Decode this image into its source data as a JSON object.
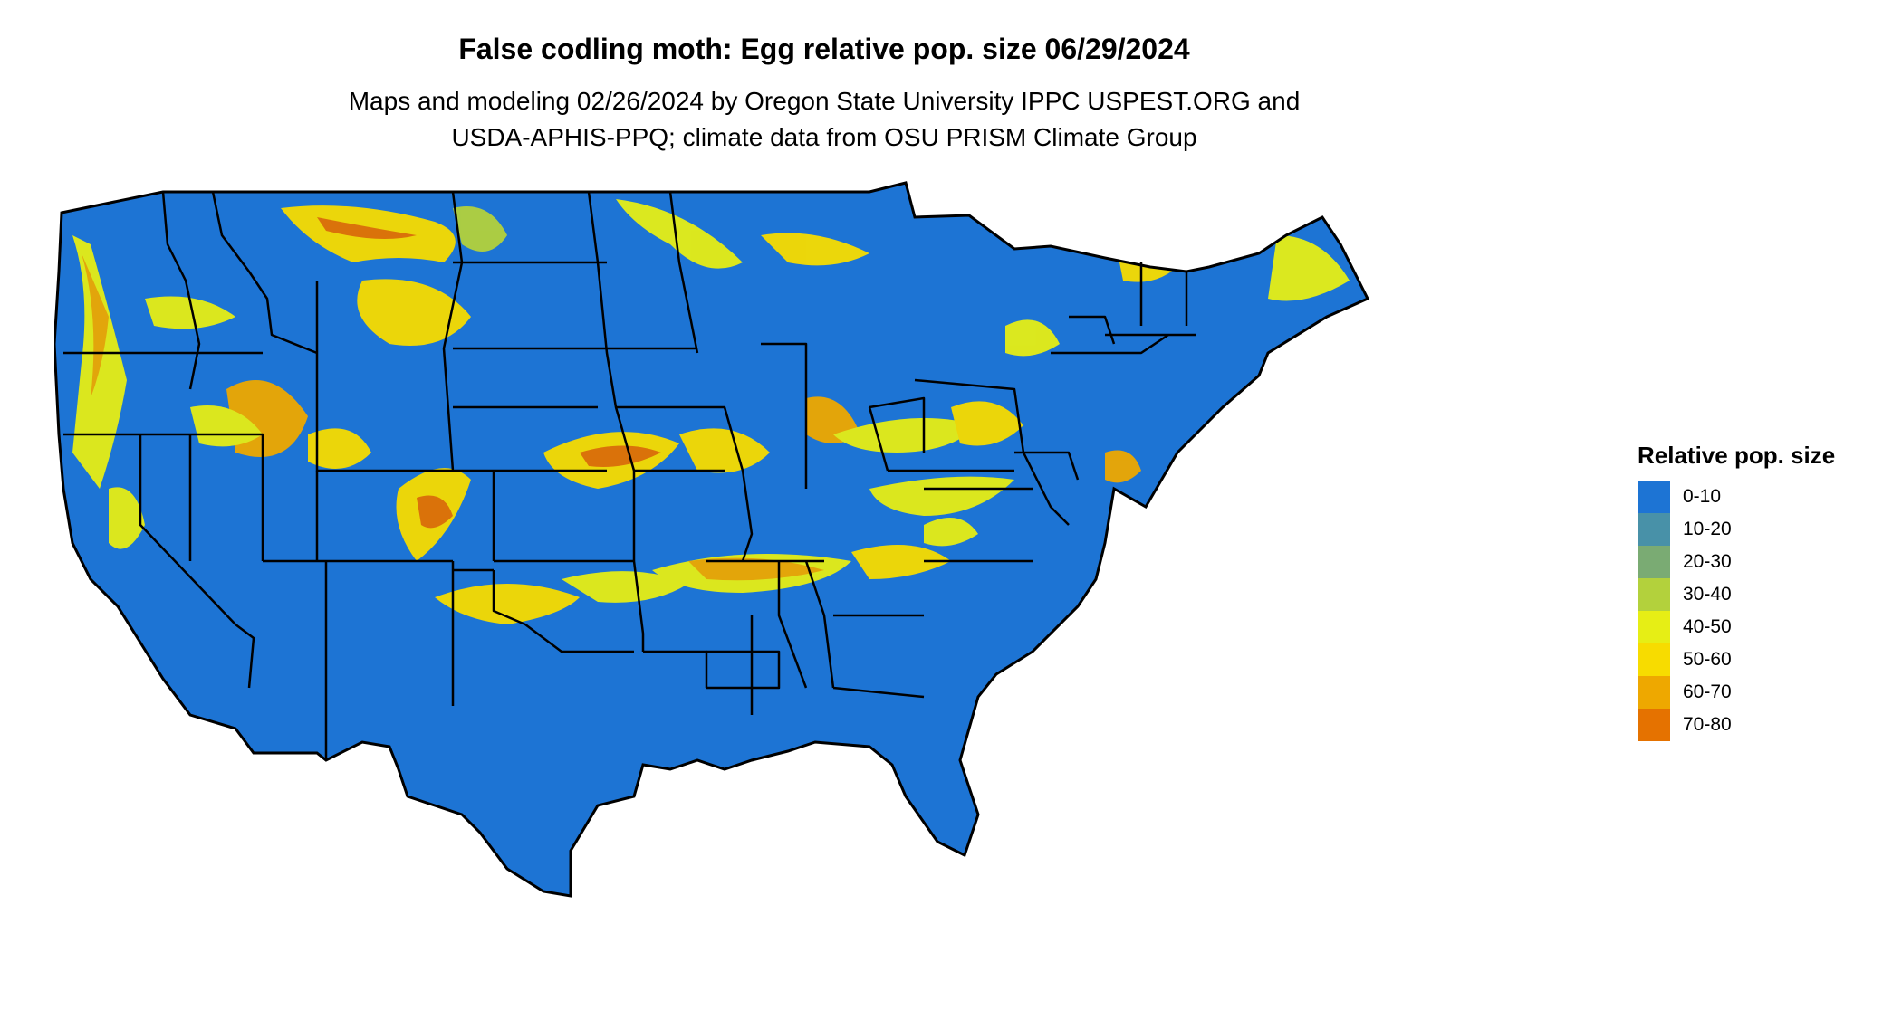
{
  "title": "False codling moth: Egg relative pop. size 06/29/2024",
  "subtitle_lines": [
    "Maps and modeling 02/26/2024 by Oregon State University IPPC USPEST.ORG and",
    "USDA-APHIS-PPQ; climate data from OSU PRISM Climate Group"
  ],
  "legend": {
    "title": "Relative pop. size",
    "items": [
      {
        "label": "0-10",
        "color": "#1d74d4"
      },
      {
        "label": "10-20",
        "color": "#4891a8"
      },
      {
        "label": "20-30",
        "color": "#7aab73"
      },
      {
        "label": "30-40",
        "color": "#b3d13c"
      },
      {
        "label": "40-50",
        "color": "#e6ee15"
      },
      {
        "label": "50-60",
        "color": "#f7dc00"
      },
      {
        "label": "60-70",
        "color": "#eea800"
      },
      {
        "label": "70-80",
        "color": "#e57200"
      }
    ]
  }
}
